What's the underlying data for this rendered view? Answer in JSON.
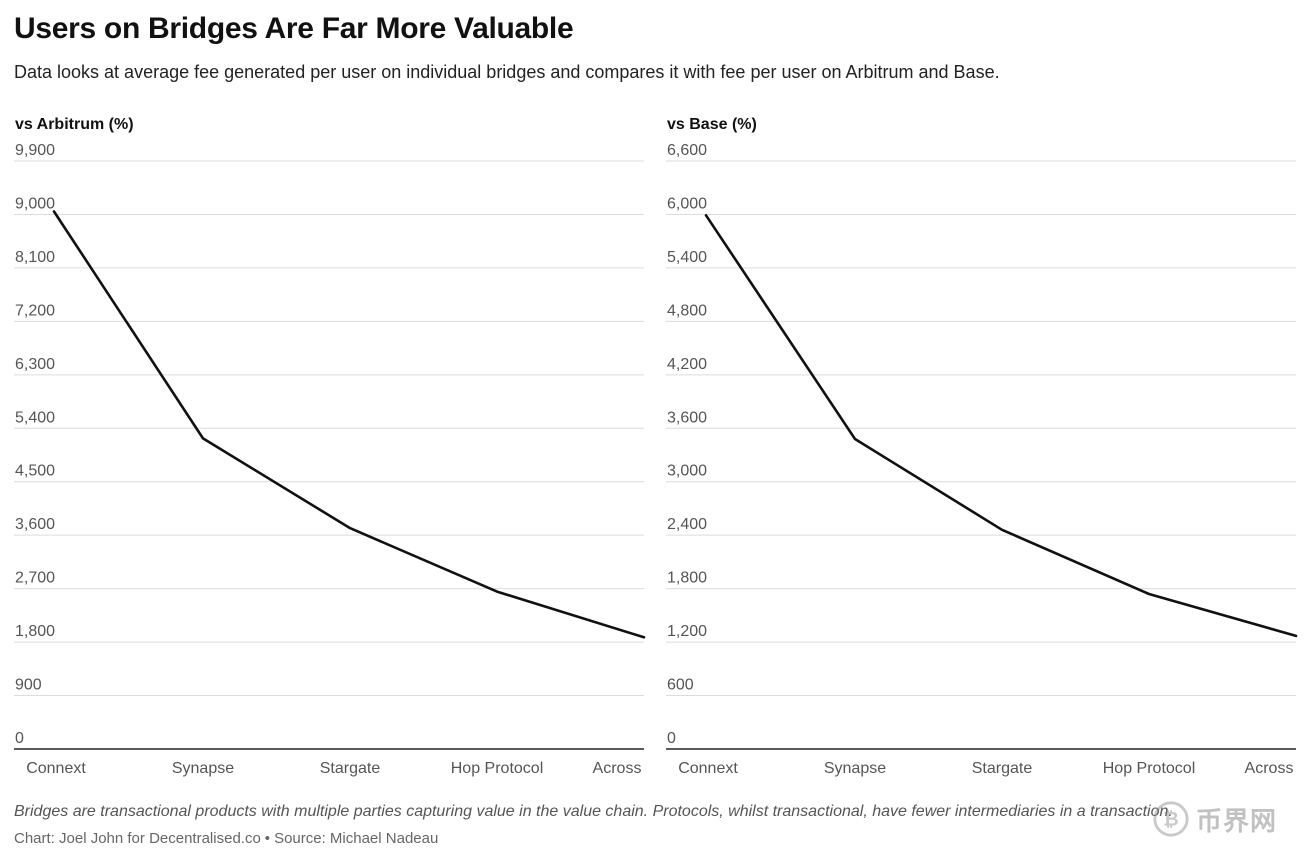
{
  "header": {
    "title": "Users on Bridges Are Far More Valuable",
    "subtitle": "Data looks at average fee generated per user on individual bridges and compares it with fee per user on Arbitrum and Base."
  },
  "chart_data": [
    {
      "type": "line",
      "title": "vs Arbitrum (%)",
      "categories": [
        "Connext",
        "Synapse",
        "Stargate",
        "Hop Protocol",
        "Across"
      ],
      "series": [
        {
          "values": [
            9050,
            5230,
            3720,
            2650,
            1880
          ]
        }
      ],
      "yticks": [
        "0",
        "900",
        "1,800",
        "2,700",
        "3,600",
        "4,500",
        "5,400",
        "6,300",
        "7,200",
        "8,100",
        "9,000",
        "9,900"
      ],
      "ylim": [
        0,
        9900
      ],
      "grid": true,
      "line_color": "#111111"
    },
    {
      "type": "line",
      "title": "vs Base (%)",
      "categories": [
        "Connext",
        "Synapse",
        "Stargate",
        "Hop Protocol",
        "Across"
      ],
      "series": [
        {
          "values": [
            5990,
            3480,
            2460,
            1740,
            1270
          ]
        }
      ],
      "yticks": [
        "0",
        "600",
        "1,200",
        "1,800",
        "2,400",
        "3,000",
        "3,600",
        "4,200",
        "4,800",
        "5,400",
        "6,000",
        "6,600"
      ],
      "ylim": [
        0,
        6600
      ],
      "grid": true,
      "line_color": "#111111"
    }
  ],
  "footer": {
    "note": "Bridges are transactional products with multiple parties capturing value in the value chain. Protocols, whilst transactional, have fewer intermediaries in a transaction.",
    "credit_chart": "Chart: Joel John for Decentralised.co",
    "credit_sep": "•",
    "credit_source": "Source: Michael Nadeau"
  },
  "watermark": {
    "text": "币界网",
    "icon": "bitcoin-coin-icon"
  }
}
